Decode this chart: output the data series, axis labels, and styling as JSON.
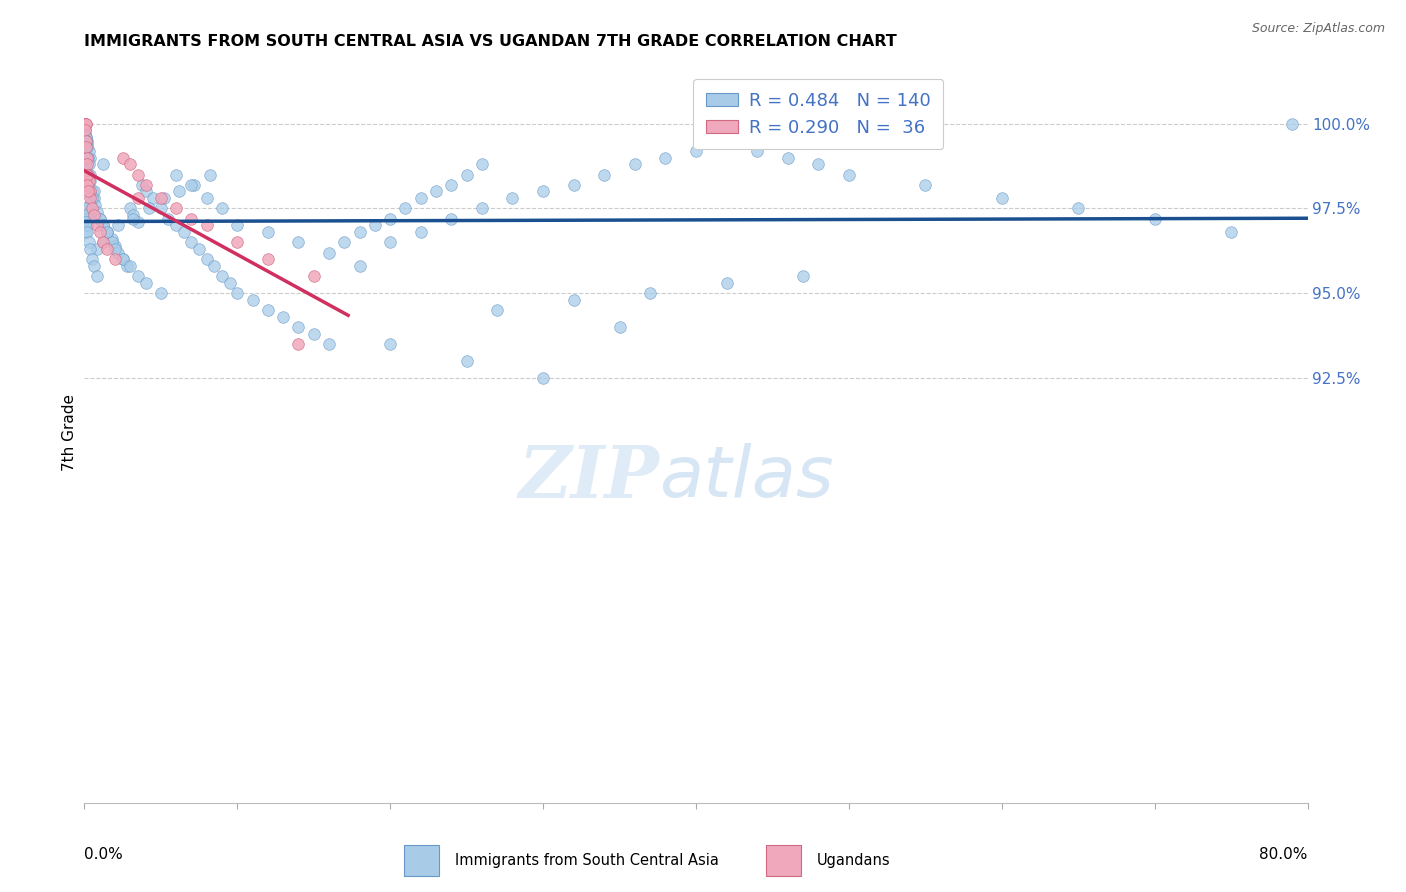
{
  "title": "IMMIGRANTS FROM SOUTH CENTRAL ASIA VS UGANDAN 7TH GRADE CORRELATION CHART",
  "source": "Source: ZipAtlas.com",
  "ylabel": "7th Grade",
  "blue_R": 0.484,
  "blue_N": 140,
  "pink_R": 0.29,
  "pink_N": 36,
  "legend_label_blue": "Immigrants from South Central Asia",
  "legend_label_pink": "Ugandans",
  "blue_color": "#a8cce8",
  "blue_edge_color": "#6898c8",
  "pink_color": "#f0a8bc",
  "pink_edge_color": "#d06880",
  "blue_line_color": "#1a5090",
  "pink_line_color": "#d03060",
  "label_color": "#4472c4",
  "grid_color": "#cccccc",
  "xlim_min": 0.0,
  "xlim_max": 80.0,
  "ylim_min": 80.0,
  "ylim_max": 101.8,
  "right_yticks": [
    92.5,
    95.0,
    97.5,
    100.0
  ],
  "right_ytick_labels": [
    "92.5%",
    "95.0%",
    "97.5%",
    "100.0%"
  ],
  "title_fontsize": 11.5,
  "marker_size": 70,
  "blue_x": [
    1.2,
    0.4,
    0.3,
    0.2,
    0.15,
    0.1,
    0.05,
    0.05,
    0.08,
    0.12,
    0.18,
    0.25,
    0.3,
    0.35,
    0.4,
    0.5,
    0.6,
    0.7,
    0.8,
    1.0,
    1.2,
    1.5,
    1.8,
    2.0,
    2.2,
    2.5,
    2.8,
    3.0,
    3.2,
    3.5,
    3.8,
    4.0,
    4.5,
    5.0,
    5.5,
    6.0,
    6.5,
    7.0,
    7.5,
    8.0,
    8.5,
    9.0,
    9.5,
    10.0,
    11.0,
    12.0,
    13.0,
    14.0,
    15.0,
    16.0,
    17.0,
    18.0,
    19.0,
    20.0,
    21.0,
    22.0,
    23.0,
    24.0,
    25.0,
    26.0,
    4.2,
    5.2,
    6.2,
    7.2,
    8.2,
    3.2,
    2.2,
    1.5,
    1.2,
    0.8,
    0.6,
    0.5,
    0.4,
    0.3,
    0.2,
    0.15,
    0.1,
    0.08,
    0.06,
    0.05,
    0.05,
    0.08,
    0.1,
    0.15,
    0.2,
    0.3,
    0.4,
    0.5,
    0.6,
    0.8,
    1.0,
    1.2,
    1.5,
    1.8,
    2.0,
    2.5,
    3.0,
    3.5,
    4.0,
    5.0,
    6.0,
    7.0,
    8.0,
    9.0,
    10.0,
    12.0,
    14.0,
    16.0,
    18.0,
    20.0,
    22.0,
    24.0,
    26.0,
    28.0,
    30.0,
    32.0,
    34.0,
    36.0,
    38.0,
    40.0,
    42.0,
    44.0,
    46.0,
    48.0,
    50.0,
    55.0,
    60.0,
    65.0,
    70.0,
    75.0,
    20.0,
    25.0,
    30.0,
    35.0,
    27.0,
    32.0,
    37.0,
    42.0,
    47.0,
    79.0
  ],
  "blue_y": [
    98.8,
    99.0,
    99.2,
    99.4,
    99.5,
    99.6,
    99.7,
    99.8,
    99.6,
    99.5,
    99.3,
    99.0,
    98.8,
    98.5,
    98.3,
    98.0,
    97.8,
    97.6,
    97.4,
    97.2,
    97.0,
    96.8,
    96.6,
    96.4,
    96.2,
    96.0,
    95.8,
    97.5,
    97.3,
    97.1,
    98.2,
    98.0,
    97.8,
    97.5,
    97.2,
    97.0,
    96.8,
    96.5,
    96.3,
    96.0,
    95.8,
    95.5,
    95.3,
    95.0,
    94.8,
    94.5,
    94.3,
    94.0,
    93.8,
    93.5,
    96.5,
    96.8,
    97.0,
    97.2,
    97.5,
    97.8,
    98.0,
    98.2,
    98.5,
    98.8,
    97.5,
    97.8,
    98.0,
    98.2,
    98.5,
    97.2,
    97.0,
    96.8,
    96.5,
    96.3,
    98.0,
    97.8,
    97.6,
    97.4,
    97.2,
    97.0,
    96.8,
    99.0,
    98.8,
    98.6,
    97.5,
    97.3,
    97.1,
    97.0,
    96.8,
    96.5,
    96.3,
    96.0,
    95.8,
    95.5,
    97.2,
    97.0,
    96.8,
    96.5,
    96.3,
    96.0,
    95.8,
    95.5,
    95.3,
    95.0,
    98.5,
    98.2,
    97.8,
    97.5,
    97.0,
    96.8,
    96.5,
    96.2,
    95.8,
    96.5,
    96.8,
    97.2,
    97.5,
    97.8,
    98.0,
    98.2,
    98.5,
    98.8,
    99.0,
    99.2,
    99.5,
    99.2,
    99.0,
    98.8,
    98.5,
    98.2,
    97.8,
    97.5,
    97.2,
    96.8,
    93.5,
    93.0,
    92.5,
    94.0,
    94.5,
    94.8,
    95.0,
    95.3,
    95.5,
    100.0
  ],
  "pink_x": [
    0.05,
    0.05,
    0.08,
    0.1,
    0.05,
    0.08,
    0.12,
    0.15,
    0.2,
    0.25,
    0.3,
    0.35,
    0.4,
    0.5,
    0.6,
    0.8,
    1.0,
    1.2,
    1.5,
    2.0,
    2.5,
    3.0,
    3.5,
    4.0,
    5.0,
    6.0,
    8.0,
    10.0,
    12.0,
    15.0,
    0.15,
    0.2,
    0.25,
    3.5,
    7.0,
    14.0
  ],
  "pink_y": [
    100.0,
    100.0,
    100.0,
    100.0,
    99.8,
    99.5,
    99.3,
    99.0,
    98.8,
    98.5,
    98.3,
    98.0,
    97.8,
    97.5,
    97.3,
    97.0,
    96.8,
    96.5,
    96.3,
    96.0,
    99.0,
    98.8,
    98.5,
    98.2,
    97.8,
    97.5,
    97.0,
    96.5,
    96.0,
    95.5,
    98.5,
    98.2,
    98.0,
    97.8,
    97.2,
    93.5
  ]
}
